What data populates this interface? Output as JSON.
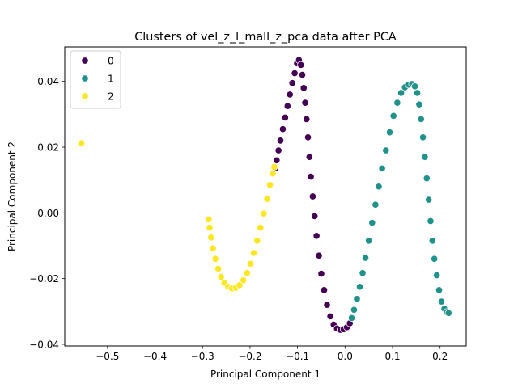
{
  "chart_data": {
    "type": "scatter",
    "title": "Clusters of vel_z_l_mall_z_pca data after PCA",
    "xlabel": "Principal Component 1",
    "ylabel": "Principal Component 2",
    "xlim": [
      -0.59,
      0.255
    ],
    "ylim": [
      -0.0405,
      0.0505
    ],
    "xticks": [
      -0.5,
      -0.4,
      -0.3,
      -0.2,
      -0.1,
      0.0,
      0.1,
      0.2
    ],
    "xtick_labels": [
      "−0.5",
      "−0.4",
      "−0.3",
      "−0.2",
      "−0.1",
      "0.0",
      "0.1",
      "0.2"
    ],
    "yticks": [
      -0.04,
      -0.02,
      0.0,
      0.02,
      0.04
    ],
    "ytick_labels": [
      "−0.04",
      "−0.02",
      "0.00",
      "0.02",
      "0.04"
    ],
    "grid": false,
    "legend_position": "top-left",
    "marker_edge_color": "#ffffff",
    "series": [
      {
        "name": "0",
        "color": "#440154",
        "points": [
          [
            -0.147,
            0.0135
          ],
          [
            -0.144,
            0.016
          ],
          [
            -0.14,
            0.019
          ],
          [
            -0.136,
            0.022
          ],
          [
            -0.131,
            0.0255
          ],
          [
            -0.126,
            0.029
          ],
          [
            -0.121,
            0.0325
          ],
          [
            -0.116,
            0.036
          ],
          [
            -0.111,
            0.0395
          ],
          [
            -0.106,
            0.0425
          ],
          [
            -0.101,
            0.0455
          ],
          [
            -0.097,
            0.0465
          ],
          [
            -0.093,
            0.045
          ],
          [
            -0.09,
            0.042
          ],
          [
            -0.087,
            0.038
          ],
          [
            -0.084,
            0.0335
          ],
          [
            -0.081,
            0.0285
          ],
          [
            -0.078,
            0.023
          ],
          [
            -0.075,
            0.017
          ],
          [
            -0.072,
            0.011
          ],
          [
            -0.068,
            0.005
          ],
          [
            -0.064,
            -0.001
          ],
          [
            -0.06,
            -0.007
          ],
          [
            -0.055,
            -0.013
          ],
          [
            -0.05,
            -0.0185
          ],
          [
            -0.044,
            -0.0235
          ],
          [
            -0.038,
            -0.028
          ],
          [
            -0.031,
            -0.0315
          ],
          [
            -0.024,
            -0.034
          ],
          [
            -0.017,
            -0.0352
          ],
          [
            -0.01,
            -0.0356
          ],
          [
            -0.003,
            -0.0354
          ],
          [
            0.004,
            -0.0348
          ],
          [
            0.01,
            -0.0336
          ]
        ]
      },
      {
        "name": "1",
        "color": "#21918c",
        "points": [
          [
            0.014,
            -0.032
          ],
          [
            0.019,
            -0.0295
          ],
          [
            0.025,
            -0.0262
          ],
          [
            0.031,
            -0.0225
          ],
          [
            0.037,
            -0.0183
          ],
          [
            0.043,
            -0.0137
          ],
          [
            0.05,
            -0.0085
          ],
          [
            0.057,
            -0.003
          ],
          [
            0.064,
            0.0025
          ],
          [
            0.071,
            0.008
          ],
          [
            0.078,
            0.0135
          ],
          [
            0.086,
            0.019
          ],
          [
            0.094,
            0.0245
          ],
          [
            0.102,
            0.0295
          ],
          [
            0.11,
            0.0335
          ],
          [
            0.118,
            0.0365
          ],
          [
            0.126,
            0.0382
          ],
          [
            0.134,
            0.039
          ],
          [
            0.141,
            0.0392
          ],
          [
            0.147,
            0.0385
          ],
          [
            0.152,
            0.0365
          ],
          [
            0.156,
            0.033
          ],
          [
            0.16,
            0.0285
          ],
          [
            0.164,
            0.023
          ],
          [
            0.168,
            0.017
          ],
          [
            0.172,
            0.0105
          ],
          [
            0.176,
            0.004
          ],
          [
            0.18,
            -0.0025
          ],
          [
            0.184,
            -0.0085
          ],
          [
            0.188,
            -0.014
          ],
          [
            0.193,
            -0.019
          ],
          [
            0.198,
            -0.0235
          ],
          [
            0.203,
            -0.027
          ],
          [
            0.209,
            -0.0292
          ],
          [
            0.214,
            -0.0302
          ],
          [
            0.218,
            -0.0305
          ]
        ]
      },
      {
        "name": "2",
        "color": "#fde725",
        "points": [
          [
            -0.555,
            0.0212
          ],
          [
            -0.287,
            -0.002
          ],
          [
            -0.285,
            -0.0045
          ],
          [
            -0.282,
            -0.0075
          ],
          [
            -0.278,
            -0.0108
          ],
          [
            -0.273,
            -0.014
          ],
          [
            -0.267,
            -0.017
          ],
          [
            -0.261,
            -0.0195
          ],
          [
            -0.254,
            -0.0213
          ],
          [
            -0.246,
            -0.0225
          ],
          [
            -0.238,
            -0.023
          ],
          [
            -0.23,
            -0.0228
          ],
          [
            -0.222,
            -0.022
          ],
          [
            -0.214,
            -0.0205
          ],
          [
            -0.206,
            -0.0183
          ],
          [
            -0.199,
            -0.0155
          ],
          [
            -0.192,
            -0.0122
          ],
          [
            -0.185,
            -0.0085
          ],
          [
            -0.178,
            -0.0045
          ],
          [
            -0.171,
            -0.0002
          ],
          [
            -0.164,
            0.0042
          ],
          [
            -0.158,
            0.0085
          ],
          [
            -0.152,
            0.012
          ],
          [
            -0.149,
            0.014
          ]
        ]
      }
    ]
  }
}
